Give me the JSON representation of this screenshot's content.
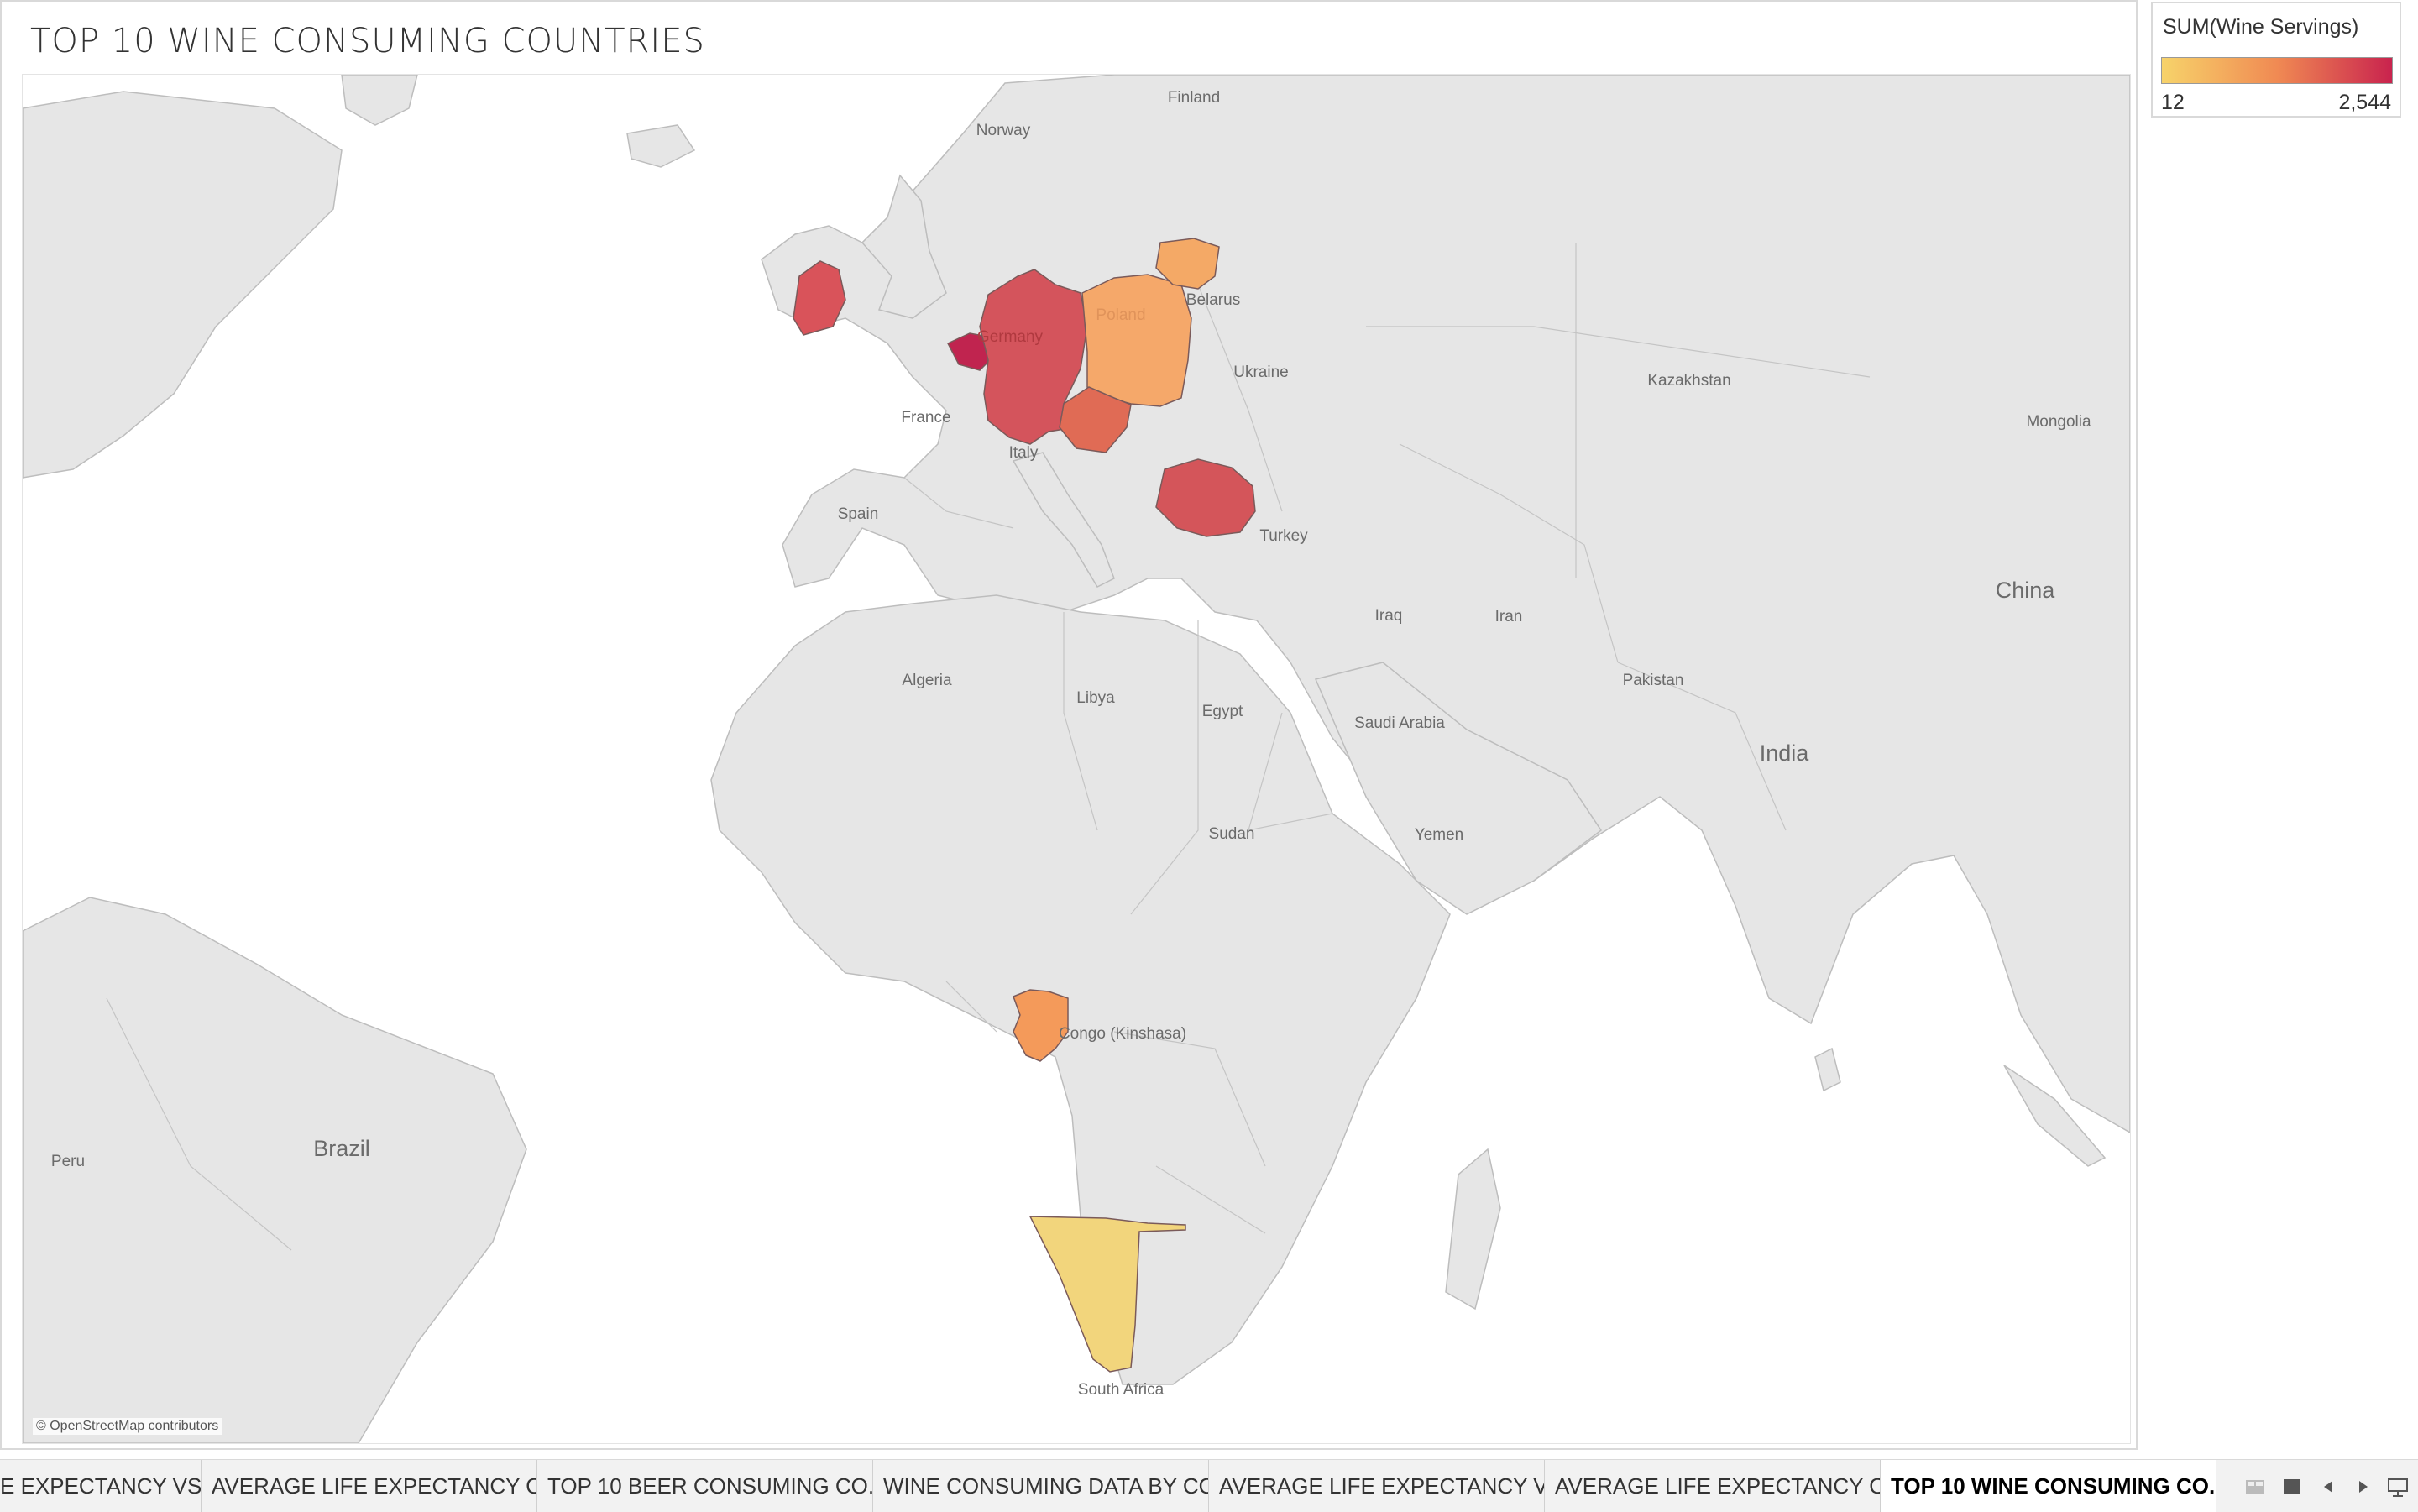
{
  "worksheet": {
    "title": "TOP 10 WINE CONSUMING COUNTRIES",
    "attribution": "© OpenStreetMap contributors"
  },
  "legend": {
    "title": "SUM(Wine Servings)",
    "min_label": "12",
    "max_label": "2,544",
    "min_value": 12,
    "max_value": 2544,
    "color_low": "#f7d36a",
    "color_mid": "#f08a53",
    "color_high": "#c9234e"
  },
  "map": {
    "land_color": "#e6e6e6",
    "border_color": "#b9b9b9",
    "water_color": "#ffffff",
    "labels": [
      "Finland",
      "Norway",
      "Belarus",
      "Ukraine",
      "France",
      "Italy",
      "Spain",
      "Turkey",
      "Kazakhstan",
      "Mongolia",
      "China",
      "Iraq",
      "Iran",
      "Pakistan",
      "India",
      "Algeria",
      "Libya",
      "Egypt",
      "Saudi Arabia",
      "Yemen",
      "Sudan",
      "Congo (Kinshasa)",
      "Brazil",
      "Peru",
      "South Africa",
      "Germany",
      "Poland"
    ],
    "highlighted": [
      {
        "name": "Ireland",
        "color": "#d9535a"
      },
      {
        "name": "Germany",
        "color": "#d4545c"
      },
      {
        "name": "Belgium",
        "color": "#c0244f"
      },
      {
        "name": "Poland",
        "color": "#f5a86a"
      },
      {
        "name": "Lithuania",
        "color": "#f4a966"
      },
      {
        "name": "Czechia/Austria",
        "color": "#e06b55"
      },
      {
        "name": "Romania",
        "color": "#d4555a"
      },
      {
        "name": "Gabon",
        "color": "#f49a5a"
      },
      {
        "name": "Namibia",
        "color": "#f2d57c"
      }
    ]
  },
  "tabs": [
    {
      "label": "E EXPECTANCY VS..."
    },
    {
      "label": "AVERAGE LIFE EXPECTANCY OF..."
    },
    {
      "label": "TOP 10 BEER CONSUMING CO..."
    },
    {
      "label": "WINE CONSUMING DATA BY CO..."
    },
    {
      "label": "AVERAGE LIFE EXPECTANCY VS..."
    },
    {
      "label": "AVERAGE LIFE EXPECTANCY OF..."
    },
    {
      "label": "TOP 10 WINE CONSUMING CO..."
    }
  ],
  "tab_controls": [
    "sheet-grid-icon",
    "filmstrip-icon",
    "prev-sheet-icon",
    "next-sheet-icon",
    "presentation-icon"
  ]
}
